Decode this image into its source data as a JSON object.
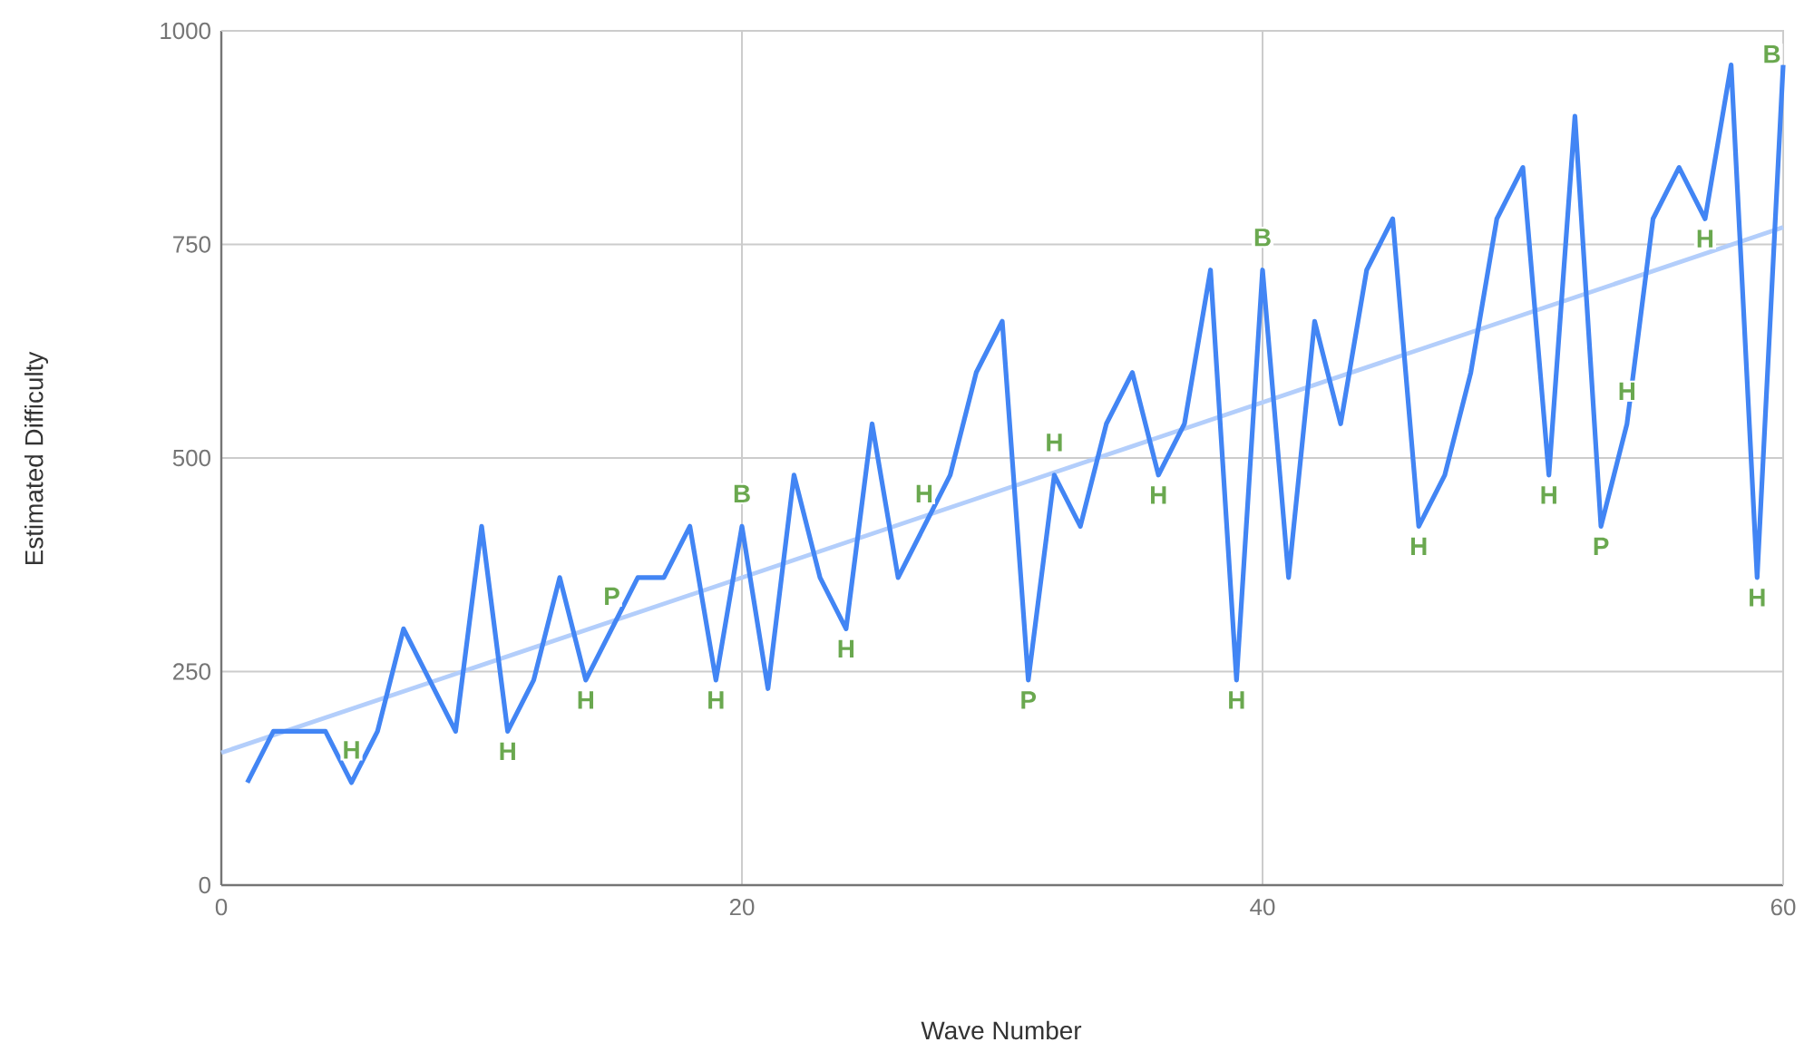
{
  "chart_data": {
    "type": "line",
    "xlabel": "Wave Number",
    "ylabel": "Estimated Difficulty",
    "x": [
      1,
      2,
      3,
      4,
      5,
      6,
      7,
      8,
      9,
      10,
      11,
      12,
      13,
      14,
      15,
      16,
      17,
      18,
      19,
      20,
      21,
      22,
      23,
      24,
      25,
      26,
      27,
      28,
      29,
      30,
      31,
      32,
      33,
      34,
      35,
      36,
      37,
      38,
      39,
      40,
      41,
      42,
      43,
      44,
      45,
      46,
      47,
      48,
      49,
      50,
      51,
      52,
      53,
      54,
      55,
      56,
      57,
      58,
      59,
      60
    ],
    "series": [
      {
        "color": "#4285f4",
        "values": [
          120,
          180,
          180,
          180,
          120,
          180,
          300,
          240,
          180,
          420,
          180,
          240,
          360,
          240,
          300,
          360,
          360,
          420,
          240,
          420,
          230,
          480,
          360,
          300,
          540,
          360,
          420,
          480,
          600,
          660,
          240,
          480,
          420,
          540,
          600,
          480,
          540,
          720,
          240,
          720,
          360,
          660,
          540,
          720,
          780,
          420,
          480,
          600,
          780,
          840,
          480,
          900,
          420,
          540,
          780,
          840,
          780,
          960,
          360,
          960
        ]
      },
      {
        "type": "line",
        "color": "#b3cefb",
        "x": [
          0,
          60
        ],
        "values": [
          155,
          770
        ]
      }
    ],
    "annotations": [
      {
        "text": "H",
        "x": 5,
        "y": 120
      },
      {
        "text": "H",
        "x": 11,
        "y": 180
      },
      {
        "text": "H",
        "x": 14,
        "y": 240
      },
      {
        "text": "P",
        "x": 15,
        "y": 300
      },
      {
        "text": "H",
        "x": 19,
        "y": 240
      },
      {
        "text": "B",
        "x": 20,
        "y": 420
      },
      {
        "text": "H",
        "x": 24,
        "y": 300
      },
      {
        "text": "H",
        "x": 27,
        "y": 420
      },
      {
        "text": "P",
        "x": 31,
        "y": 240
      },
      {
        "text": "H",
        "x": 32,
        "y": 480
      },
      {
        "text": "H",
        "x": 36,
        "y": 480
      },
      {
        "text": "H",
        "x": 39,
        "y": 240
      },
      {
        "text": "B",
        "x": 40,
        "y": 720
      },
      {
        "text": "H",
        "x": 46,
        "y": 420
      },
      {
        "text": "H",
        "x": 51,
        "y": 480
      },
      {
        "text": "P",
        "x": 53,
        "y": 420
      },
      {
        "text": "H",
        "x": 54,
        "y": 540
      },
      {
        "text": "H",
        "x": 57,
        "y": 780
      },
      {
        "text": "H",
        "x": 59,
        "y": 360
      },
      {
        "text": "B",
        "x": 60,
        "y": 960
      }
    ],
    "xlim": [
      0,
      60
    ],
    "ylim": [
      0,
      1000
    ],
    "xticks": [
      0,
      20,
      40,
      60
    ],
    "yticks": [
      0,
      250,
      500,
      750,
      1000
    ],
    "grid": true,
    "marker": "none",
    "line_style": "solid"
  }
}
